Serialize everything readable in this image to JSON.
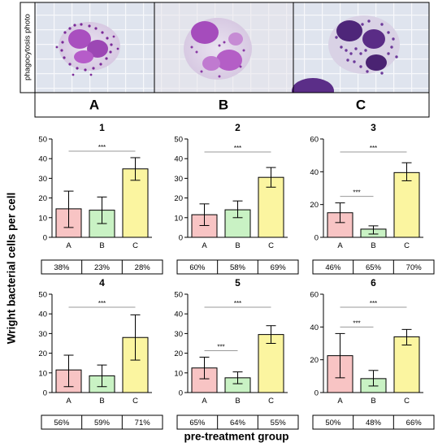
{
  "photo_strip": {
    "side_label": "phagocytosis photo",
    "panels": [
      "A",
      "B",
      "C"
    ]
  },
  "y_axis_label": "Wright bacterial cells per cell",
  "x_axis_label": "pre-treatment group",
  "colors": {
    "A": "#f8c4c4",
    "B": "#c9f2c4",
    "C": "#fbf5a0"
  },
  "chart_data": [
    {
      "type": "bar",
      "title": "1",
      "categories": [
        "A",
        "B",
        "C"
      ],
      "values": [
        14.5,
        13.8,
        34.8
      ],
      "errors": [
        [
          5,
          23.5
        ],
        [
          7,
          20.5
        ],
        [
          29,
          40.5
        ]
      ],
      "ylim": [
        0,
        50
      ],
      "yticks": [
        0,
        10,
        20,
        30,
        40,
        50
      ],
      "significance": [
        {
          "from": "A",
          "to": "C",
          "label": "***"
        }
      ],
      "percentages": [
        "38%",
        "23%",
        "28%"
      ]
    },
    {
      "type": "bar",
      "title": "2",
      "categories": [
        "A",
        "B",
        "C"
      ],
      "values": [
        11.5,
        14,
        30.5
      ],
      "errors": [
        [
          6,
          17
        ],
        [
          10,
          18.5
        ],
        [
          25.5,
          35.5
        ]
      ],
      "ylim": [
        0,
        50
      ],
      "yticks": [
        0,
        10,
        20,
        30,
        40,
        50
      ],
      "significance": [
        {
          "from": "A",
          "to": "C",
          "label": "***"
        }
      ],
      "percentages": [
        "60%",
        "58%",
        "69%"
      ]
    },
    {
      "type": "bar",
      "title": "3",
      "categories": [
        "A",
        "B",
        "C"
      ],
      "values": [
        15,
        5,
        39.5
      ],
      "errors": [
        [
          9,
          21
        ],
        [
          2,
          7
        ],
        [
          34.5,
          45.5
        ]
      ],
      "ylim": [
        0,
        60
      ],
      "yticks": [
        0,
        20,
        40,
        60
      ],
      "significance": [
        {
          "from": "A",
          "to": "C",
          "label": "***"
        },
        {
          "from": "A",
          "to": "B",
          "label": "***"
        }
      ],
      "percentages": [
        "46%",
        "65%",
        "70%"
      ]
    },
    {
      "type": "bar",
      "title": "4",
      "categories": [
        "A",
        "B",
        "C"
      ],
      "values": [
        11.5,
        8.5,
        28
      ],
      "errors": [
        [
          3,
          19
        ],
        [
          3,
          14
        ],
        [
          16.5,
          39.5
        ]
      ],
      "ylim": [
        0,
        50
      ],
      "yticks": [
        0,
        10,
        20,
        30,
        40,
        50
      ],
      "significance": [
        {
          "from": "A",
          "to": "C",
          "label": "***"
        }
      ],
      "percentages": [
        "56%",
        "59%",
        "71%"
      ]
    },
    {
      "type": "bar",
      "title": "5",
      "categories": [
        "A",
        "B",
        "C"
      ],
      "values": [
        12.5,
        7.5,
        29.5
      ],
      "errors": [
        [
          7,
          18
        ],
        [
          4.5,
          10.5
        ],
        [
          25,
          34
        ]
      ],
      "ylim": [
        0,
        50
      ],
      "yticks": [
        0,
        10,
        20,
        30,
        40,
        50
      ],
      "significance": [
        {
          "from": "A",
          "to": "C",
          "label": "***"
        },
        {
          "from": "A",
          "to": "B",
          "label": "***"
        }
      ],
      "percentages": [
        "65%",
        "64%",
        "55%"
      ]
    },
    {
      "type": "bar",
      "title": "6",
      "categories": [
        "A",
        "B",
        "C"
      ],
      "values": [
        22.5,
        8.5,
        34
      ],
      "errors": [
        [
          9,
          36
        ],
        [
          4,
          13.5
        ],
        [
          29,
          38.5
        ]
      ],
      "ylim": [
        0,
        60
      ],
      "yticks": [
        0,
        20,
        40,
        60
      ],
      "significance": [
        {
          "from": "A",
          "to": "C",
          "label": "***"
        },
        {
          "from": "A",
          "to": "B",
          "label": "***"
        }
      ],
      "percentages": [
        "50%",
        "48%",
        "66%"
      ]
    }
  ]
}
